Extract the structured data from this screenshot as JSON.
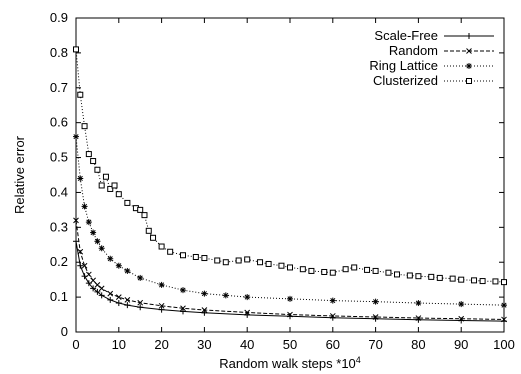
{
  "chart_data": {
    "type": "line",
    "xlabel": "Random walk steps *10",
    "xlabel_superscript": "4",
    "ylabel": "Relative error",
    "xlim": [
      0,
      100
    ],
    "ylim": [
      0,
      0.9
    ],
    "xticks": [
      "0",
      "10",
      "20",
      "30",
      "40",
      "50",
      "60",
      "70",
      "80",
      "90",
      "100"
    ],
    "yticks": [
      "0",
      "0.1",
      "0.2",
      "0.3",
      "0.4",
      "0.5",
      "0.6",
      "0.7",
      "0.8",
      "0.9"
    ],
    "grid": false,
    "legend_position": "top-right",
    "series": [
      {
        "name": "Scale-Free",
        "line_style": "solid",
        "marker": "plus",
        "x": [
          0,
          1,
          2,
          3,
          4,
          5,
          6,
          8,
          10,
          12,
          15,
          20,
          25,
          30,
          40,
          50,
          60,
          70,
          80,
          90,
          100
        ],
        "y": [
          0.26,
          0.19,
          0.16,
          0.14,
          0.125,
          0.115,
          0.105,
          0.092,
          0.083,
          0.077,
          0.071,
          0.064,
          0.059,
          0.055,
          0.049,
          0.045,
          0.041,
          0.038,
          0.035,
          0.033,
          0.031
        ]
      },
      {
        "name": "Random",
        "line_style": "dashed",
        "marker": "x",
        "x": [
          0,
          1,
          2,
          3,
          4,
          5,
          6,
          8,
          10,
          12,
          15,
          20,
          25,
          30,
          40,
          50,
          60,
          70,
          80,
          90,
          100
        ],
        "y": [
          0.32,
          0.23,
          0.19,
          0.165,
          0.148,
          0.135,
          0.125,
          0.11,
          0.1,
          0.092,
          0.084,
          0.075,
          0.068,
          0.063,
          0.056,
          0.05,
          0.046,
          0.043,
          0.04,
          0.038,
          0.036
        ]
      },
      {
        "name": "Ring Lattice",
        "line_style": "dotted",
        "marker": "star",
        "x": [
          0,
          1,
          2,
          3,
          4,
          5,
          6,
          8,
          10,
          12,
          15,
          20,
          25,
          30,
          35,
          40,
          50,
          60,
          70,
          80,
          90,
          100
        ],
        "y": [
          0.56,
          0.44,
          0.36,
          0.315,
          0.285,
          0.26,
          0.24,
          0.21,
          0.19,
          0.175,
          0.155,
          0.135,
          0.12,
          0.11,
          0.105,
          0.1,
          0.095,
          0.09,
          0.087,
          0.083,
          0.08,
          0.077
        ]
      },
      {
        "name": "Clusterized",
        "line_style": "dotted",
        "marker": "square",
        "x": [
          0,
          1,
          2,
          3,
          4,
          5,
          6,
          7,
          8,
          9,
          10,
          12,
          14,
          15,
          16,
          17,
          18,
          20,
          22,
          25,
          28,
          30,
          33,
          35,
          38,
          40,
          43,
          45,
          48,
          50,
          53,
          55,
          58,
          60,
          63,
          65,
          68,
          70,
          73,
          75,
          78,
          80,
          83,
          85,
          88,
          90,
          93,
          95,
          98,
          100
        ],
        "y": [
          0.81,
          0.68,
          0.59,
          0.51,
          0.49,
          0.465,
          0.42,
          0.445,
          0.41,
          0.42,
          0.395,
          0.37,
          0.355,
          0.35,
          0.335,
          0.29,
          0.27,
          0.245,
          0.23,
          0.22,
          0.215,
          0.212,
          0.205,
          0.2,
          0.205,
          0.208,
          0.2,
          0.195,
          0.19,
          0.185,
          0.18,
          0.175,
          0.172,
          0.17,
          0.18,
          0.185,
          0.178,
          0.175,
          0.17,
          0.165,
          0.162,
          0.16,
          0.158,
          0.155,
          0.153,
          0.15,
          0.148,
          0.146,
          0.145,
          0.143
        ]
      }
    ]
  }
}
